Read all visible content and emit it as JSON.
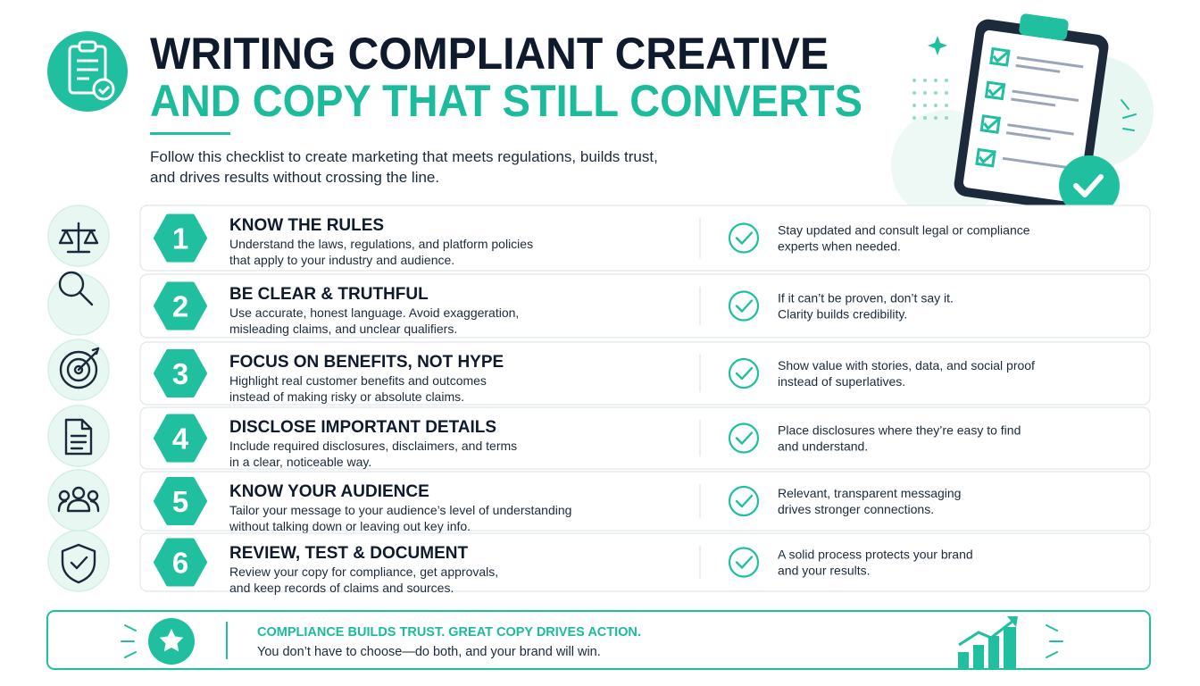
{
  "header": {
    "title_line1": "WRITING COMPLIANT CREATIVE",
    "title_line2": "AND COPY THAT STILL CONVERTS",
    "subtitle": [
      "Follow this checklist to create marketing that meets regulations, builds trust,",
      "and drives results without crossing the line."
    ]
  },
  "items": [
    {
      "number": "1",
      "title": "KNOW THE RULES",
      "description": [
        "Understand the laws, regulations, and platform policies",
        "that apply to your industry and audience."
      ],
      "tip": [
        "Stay updated and consult legal or compliance",
        "experts when needed."
      ]
    },
    {
      "number": "2",
      "title": "BE CLEAR & TRUTHFUL",
      "description": [
        "Use accurate, honest language. Avoid exaggeration,",
        "misleading claims, and unclear qualifiers."
      ],
      "tip": [
        "If it can’t be proven, don’t say it.",
        "Clarity builds credibility."
      ]
    },
    {
      "number": "3",
      "title": "FOCUS ON BENEFITS, NOT HYPE",
      "description": [
        "Highlight real customer benefits and outcomes",
        "instead of making risky or absolute claims."
      ],
      "tip": [
        "Show value with stories, data, and social proof",
        "instead of superlatives."
      ]
    },
    {
      "number": "4",
      "title": "DISCLOSE IMPORTANT DETAILS",
      "description": [
        "Include required disclosures, disclaimers, and terms",
        "in a clear, noticeable way."
      ],
      "tip": [
        "Place disclosures where they’re easy to find",
        "and understand."
      ]
    },
    {
      "number": "5",
      "title": "KNOW YOUR AUDIENCE",
      "description": [
        "Tailor your message to your audience’s level of understanding",
        "without talking down or leaving out key info."
      ],
      "tip": [
        "Relevant, transparent messaging",
        "drives stronger connections."
      ]
    },
    {
      "number": "6",
      "title": "REVIEW, TEST & DOCUMENT",
      "description": [
        "Review your copy for compliance, get approvals,",
        "and keep records of claims and sources."
      ],
      "tip": [
        "A solid process protects your brand",
        "and your results."
      ]
    }
  ],
  "footer": {
    "headline": "COMPLIANCE BUILDS TRUST. GREAT COPY DRIVES ACTION.",
    "text": "You don’t have to choose—do both, and your brand will win."
  }
}
